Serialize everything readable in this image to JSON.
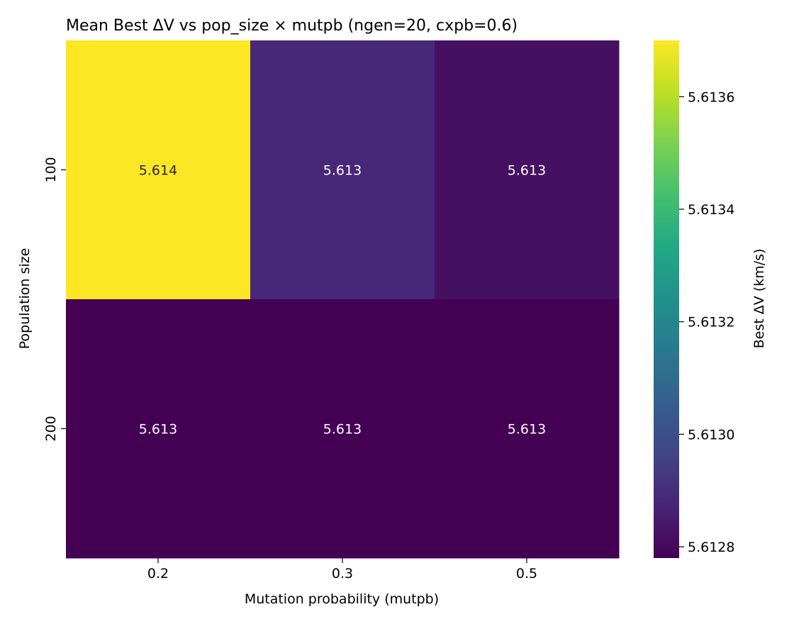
{
  "chart_data": {
    "type": "heatmap",
    "title": "Mean Best ΔV vs pop_size × mutpb  (ngen=20, cxpb=0.6)",
    "xlabel": "Mutation probability (mutpb)",
    "ylabel": "Population size",
    "x_categories": [
      "0.2",
      "0.3",
      "0.5"
    ],
    "y_categories": [
      "100",
      "200"
    ],
    "values": [
      [
        5.6137,
        5.61288,
        5.61282
      ],
      [
        5.61278,
        5.61278,
        5.61278
      ]
    ],
    "cell_labels": [
      [
        "5.614",
        "5.613",
        "5.613"
      ],
      [
        "5.613",
        "5.613",
        "5.613"
      ]
    ],
    "colorbar": {
      "label": "Best ΔV (km/s)",
      "min": 5.61278,
      "max": 5.6137,
      "ticks": [
        5.6128,
        5.613,
        5.6132,
        5.6134,
        5.6136
      ],
      "tick_labels": [
        "5.6128",
        "5.6130",
        "5.6132",
        "5.6134",
        "5.6136"
      ],
      "colormap": "viridis"
    },
    "grid": false
  }
}
